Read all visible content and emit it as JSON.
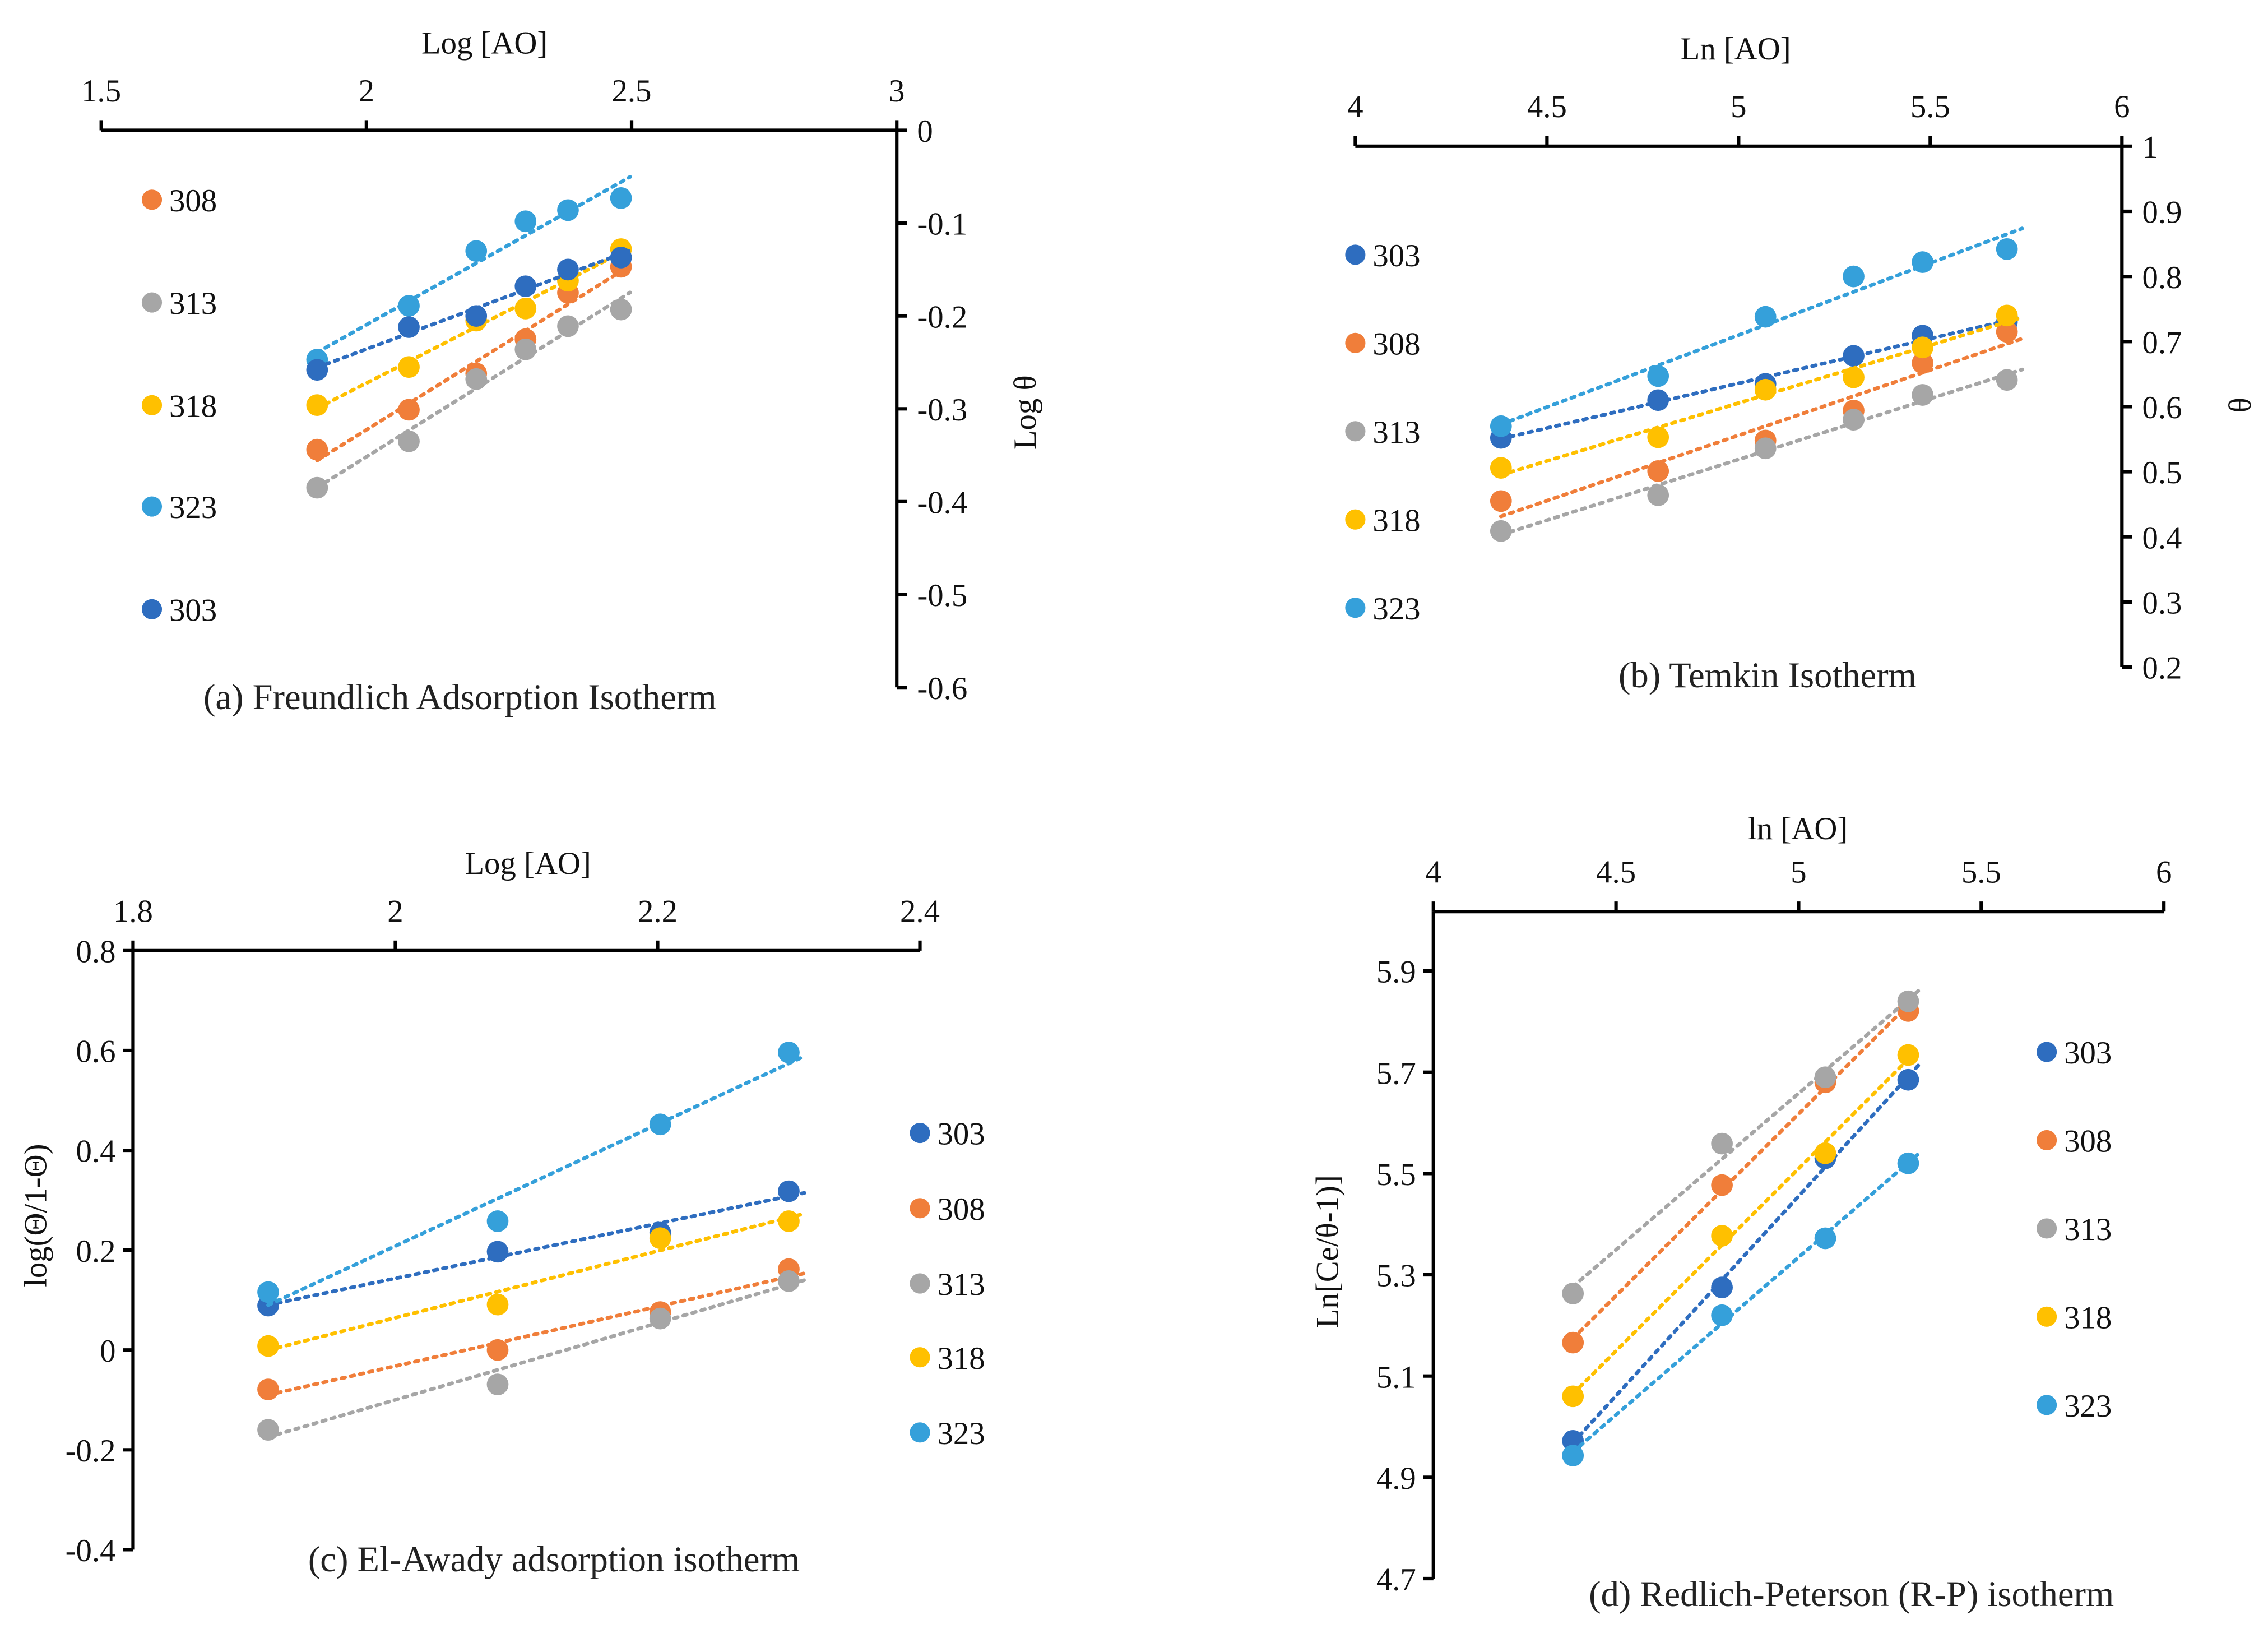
{
  "colors": {
    "303": "#2E6DBF",
    "308": "#F07E3A",
    "313": "#A6A6A6",
    "318": "#FFC000",
    "323": "#35A0DA"
  },
  "chart_data": [
    {
      "type": "scatter",
      "panel": "a",
      "caption": "(a) Freundlich Adsorption Isotherm",
      "xlabel": "Log [AO]",
      "ylabel": "Log θ",
      "xlim": [
        1.5,
        3
      ],
      "ylim": [
        -0.6,
        0
      ],
      "xticks": [
        "1.5",
        "2",
        "2.5",
        "3"
      ],
      "xtick_values": [
        1.5,
        2,
        2.5,
        3
      ],
      "yticks": [
        "0",
        "-0.1",
        "-0.2",
        "-0.3",
        "-0.4",
        "-0.5",
        "-0.6"
      ],
      "ytick_values": [
        0,
        -0.1,
        -0.2,
        -0.3,
        -0.4,
        -0.5,
        -0.6
      ],
      "trendline": "linear dotted",
      "x": [
        1.907,
        2.08,
        2.207,
        2.3,
        2.38,
        2.48
      ],
      "series": [
        {
          "name": "308",
          "values": [
            -0.344,
            -0.301,
            -0.262,
            -0.225,
            -0.175,
            -0.147
          ]
        },
        {
          "name": "313",
          "values": [
            -0.385,
            -0.335,
            -0.268,
            -0.236,
            -0.211,
            -0.193
          ]
        },
        {
          "name": "318",
          "values": [
            -0.296,
            -0.255,
            -0.205,
            -0.192,
            -0.162,
            -0.128
          ]
        },
        {
          "name": "323",
          "values": [
            -0.247,
            -0.189,
            -0.13,
            -0.098,
            -0.086,
            -0.073
          ]
        },
        {
          "name": "303",
          "values": [
            -0.258,
            -0.212,
            -0.2,
            -0.168,
            -0.15,
            -0.137
          ]
        }
      ]
    },
    {
      "type": "scatter",
      "panel": "b",
      "caption": "(b) Temkin Isotherm",
      "xlabel": "Ln [AO]",
      "ylabel": "θ",
      "xlim": [
        4,
        6
      ],
      "ylim": [
        0.2,
        1
      ],
      "xticks": [
        "4",
        "4.5",
        "5",
        "5.5",
        "6"
      ],
      "xtick_values": [
        4,
        4.5,
        5,
        5.5,
        6
      ],
      "yticks": [
        "1",
        "0.9",
        "0.8",
        "0.7",
        "0.6",
        "0.5",
        "0.4",
        "0.3",
        "0.2"
      ],
      "ytick_values": [
        1,
        0.9,
        0.8,
        0.7,
        0.6,
        0.5,
        0.4,
        0.3,
        0.2
      ],
      "trendline": "linear dotted",
      "x": [
        4.38,
        4.79,
        5.07,
        5.3,
        5.48,
        5.7
      ],
      "series": [
        {
          "name": "303",
          "values": [
            0.552,
            0.61,
            0.635,
            0.678,
            0.709,
            0.73
          ]
        },
        {
          "name": "308",
          "values": [
            0.455,
            0.501,
            0.548,
            0.594,
            0.667,
            0.715
          ]
        },
        {
          "name": "313",
          "values": [
            0.409,
            0.464,
            0.536,
            0.58,
            0.618,
            0.641
          ]
        },
        {
          "name": "318",
          "values": [
            0.506,
            0.553,
            0.626,
            0.645,
            0.691,
            0.74
          ]
        },
        {
          "name": "323",
          "values": [
            0.57,
            0.647,
            0.738,
            0.8,
            0.822,
            0.842
          ]
        }
      ]
    },
    {
      "type": "scatter",
      "panel": "c",
      "caption": "(c) El-Awady adsorption isotherm",
      "xlabel": "Log [AO]",
      "ylabel": "log(Θ/1-Θ)",
      "xlim": [
        1.8,
        2.4
      ],
      "ylim": [
        -0.4,
        0.8
      ],
      "xticks": [
        "1.8",
        "2",
        "2.2",
        "2.4"
      ],
      "xtick_values": [
        1.8,
        2,
        2.2,
        2.4
      ],
      "yticks": [
        "0.8",
        "0.6",
        "0.4",
        "0.2",
        "0",
        "-0.2",
        "-0.4"
      ],
      "ytick_values": [
        0.8,
        0.6,
        0.4,
        0.2,
        0,
        -0.2,
        -0.4
      ],
      "trendline": "linear dotted",
      "x": [
        1.903,
        2.078,
        2.202,
        2.3
      ],
      "series": [
        {
          "name": "303",
          "values": [
            0.089,
            0.197,
            0.235,
            0.318
          ]
        },
        {
          "name": "308",
          "values": [
            -0.079,
            0.0,
            0.076,
            0.162
          ]
        },
        {
          "name": "313",
          "values": [
            -0.16,
            -0.069,
            0.063,
            0.138
          ]
        },
        {
          "name": "318",
          "values": [
            0.008,
            0.091,
            0.224,
            0.258
          ]
        },
        {
          "name": "323",
          "values": [
            0.116,
            0.258,
            0.452,
            0.596
          ]
        }
      ]
    },
    {
      "type": "scatter",
      "panel": "d",
      "caption": "(d) Redlich-Peterson (R-P) isotherm",
      "xlabel": "ln [AO]",
      "ylabel": "Ln[Ce/θ-1)]",
      "xlim": [
        4,
        6
      ],
      "ylim": [
        4.7,
        6.0
      ],
      "xticks": [
        "4",
        "4.5",
        "5",
        "5.5",
        "6"
      ],
      "xtick_values": [
        4,
        4.5,
        5,
        5.5,
        6
      ],
      "yticks": [
        "5.9",
        "5.7",
        "5.5",
        "5.3",
        "5.1",
        "4.9",
        "4.7"
      ],
      "ytick_values": [
        5.9,
        5.7,
        5.5,
        5.3,
        5.1,
        4.9,
        4.7
      ],
      "trendline": "linear dotted",
      "x": [
        4.382,
        4.79,
        5.073,
        5.3
      ],
      "series": [
        {
          "name": "303",
          "values": [
            4.972,
            5.275,
            5.53,
            5.685
          ]
        },
        {
          "name": "308",
          "values": [
            5.166,
            5.477,
            5.68,
            5.821
          ]
        },
        {
          "name": "313",
          "values": [
            5.263,
            5.559,
            5.69,
            5.84
          ]
        },
        {
          "name": "318",
          "values": [
            5.06,
            5.377,
            5.54,
            5.734
          ]
        },
        {
          "name": "323",
          "values": [
            4.943,
            5.22,
            5.372,
            5.52
          ]
        }
      ]
    }
  ]
}
